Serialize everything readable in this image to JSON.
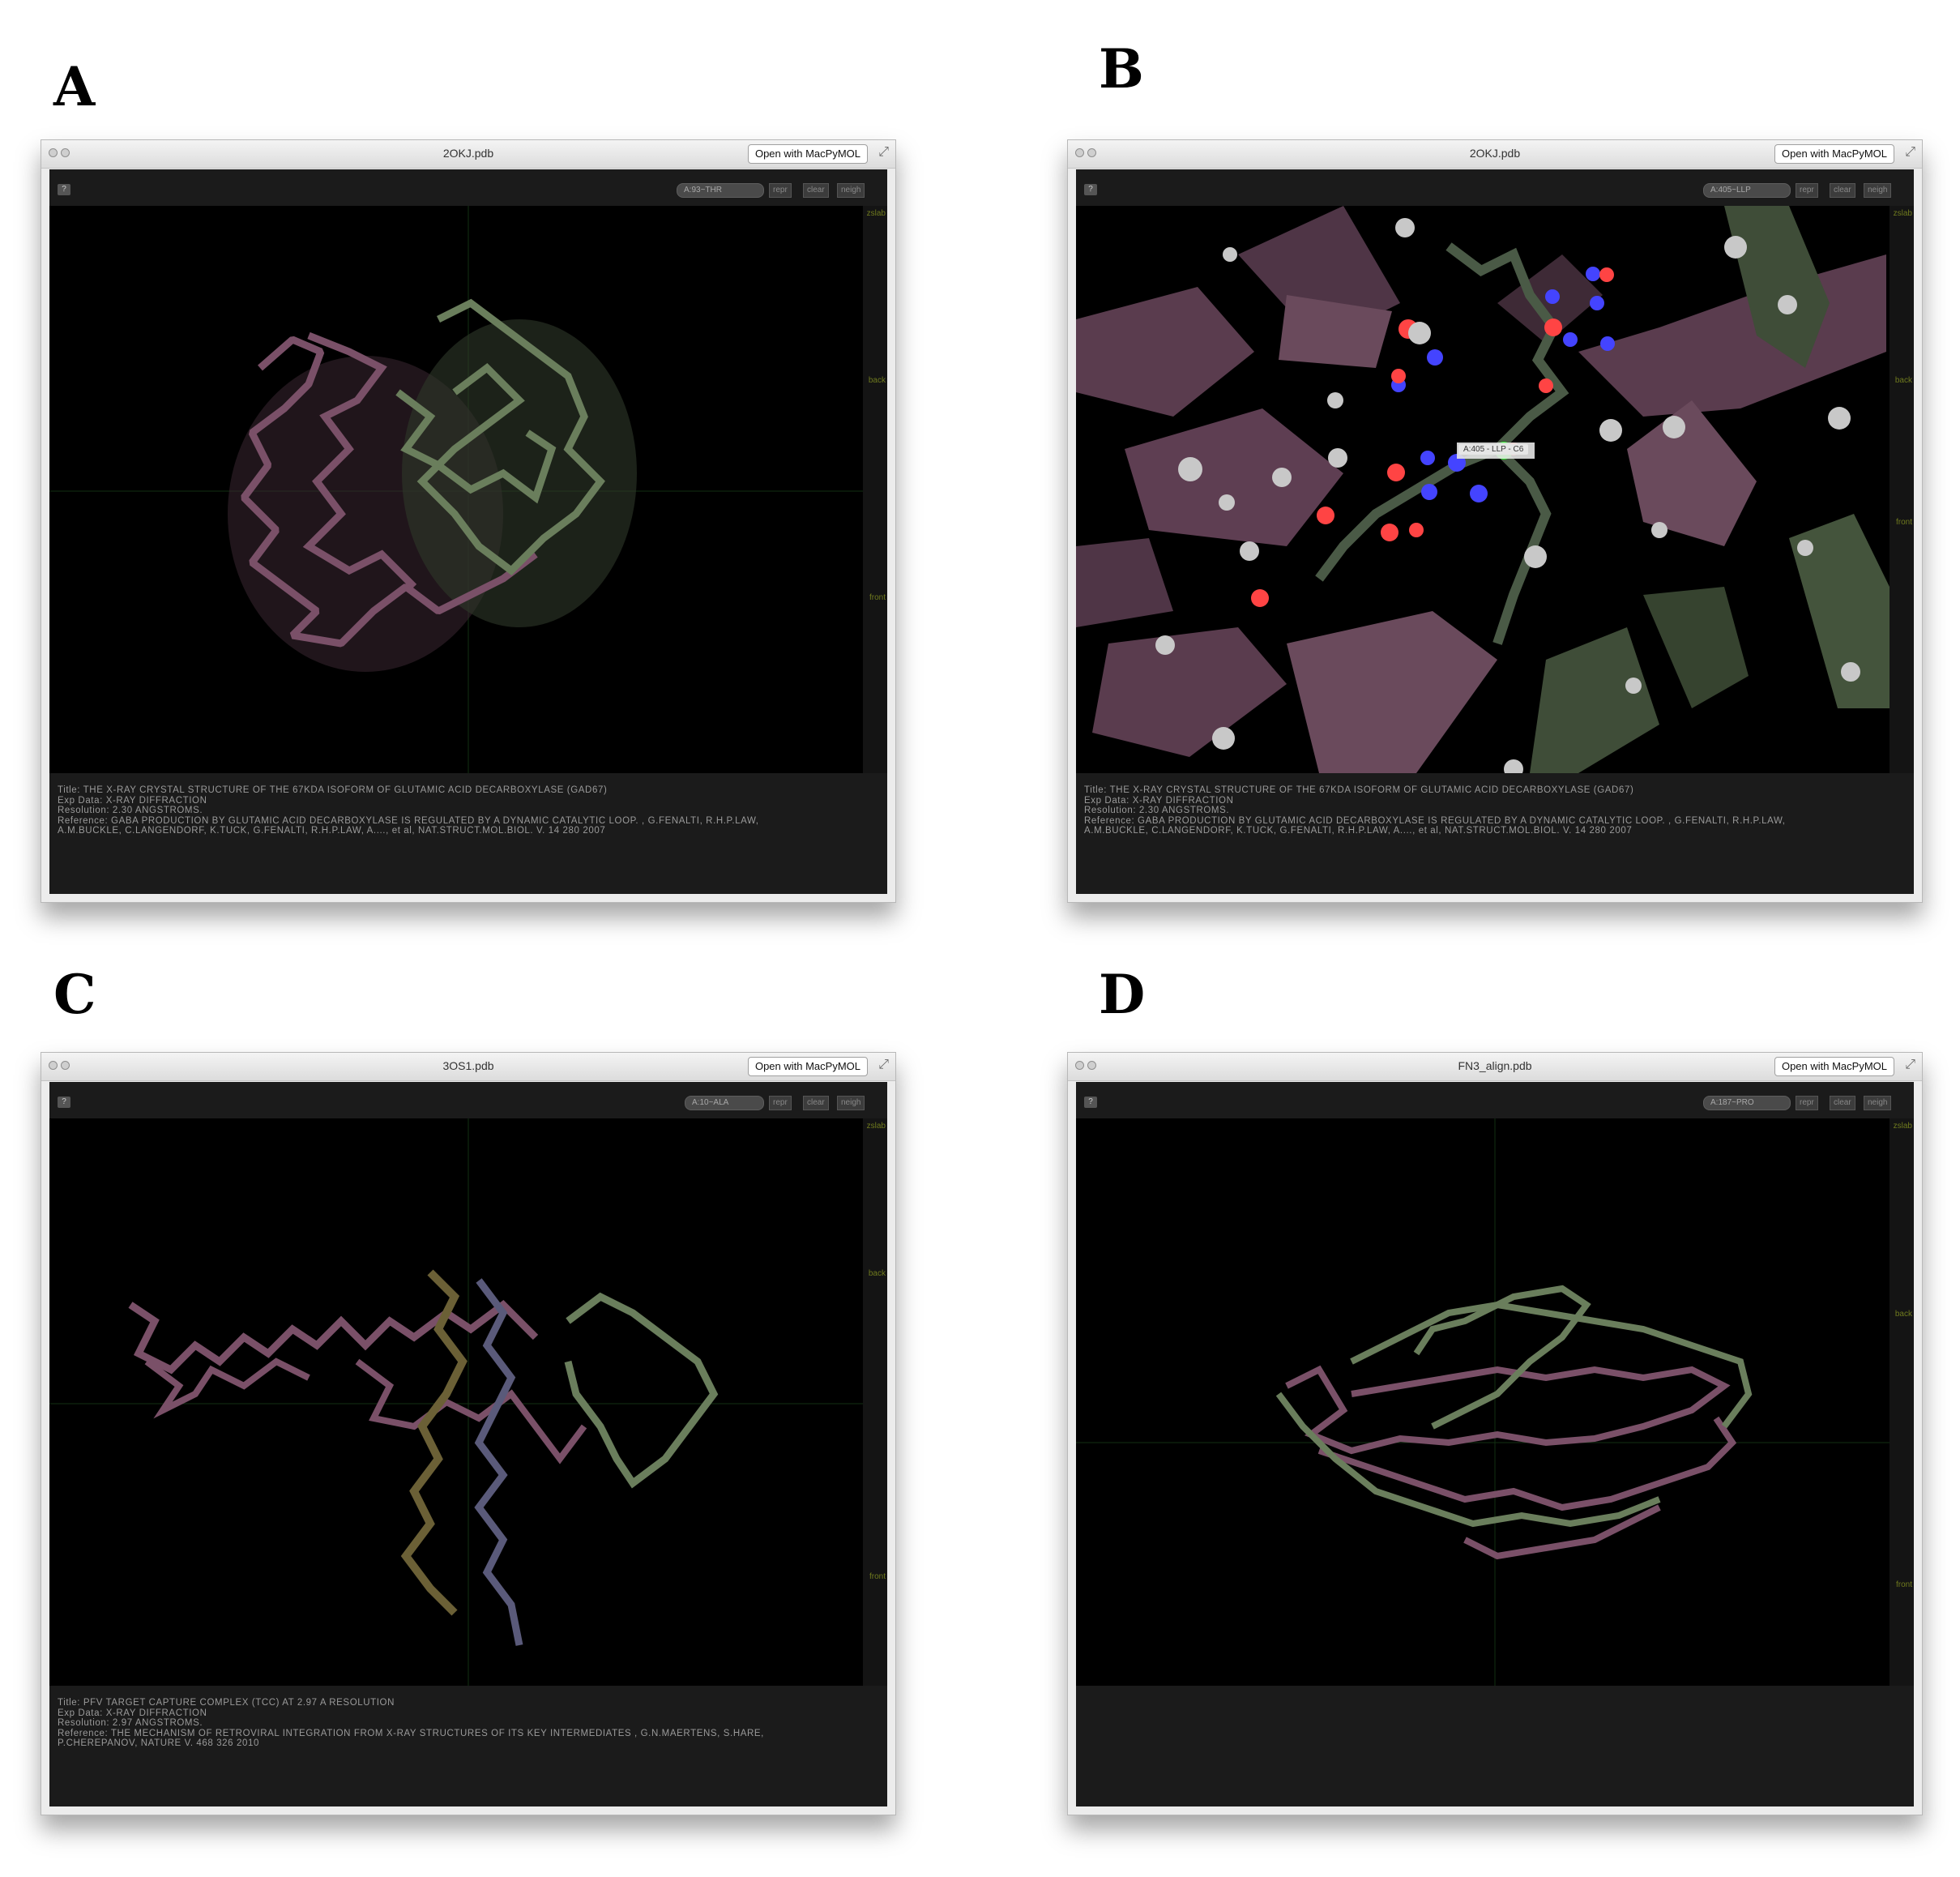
{
  "panel_labels": [
    "A",
    "B",
    "C",
    "D"
  ],
  "common": {
    "open_button": "Open with MacPyMOL",
    "help_button": "?",
    "repr_button": "repr",
    "clear_button": "clear",
    "neigh_button": "neigh",
    "slab_labels": {
      "zslab": "zslab",
      "back": "back",
      "front": "front"
    }
  },
  "windows": [
    {
      "title": "2OKJ.pdb",
      "residue_selector": "A:93~THR",
      "info": {
        "title": "Title: THE X-RAY CRYSTAL STRUCTURE OF THE 67KDA ISOFORM OF GLUTAMIC ACID DECARBOXYLASE (GAD67)",
        "exp": "Exp Data: X-RAY DIFFRACTION",
        "resolution": "Resolution: 2.30 ANGSTROMS.",
        "reference1": "Reference: GABA PRODUCTION BY GLUTAMIC ACID DECARBOXYLASE IS REGULATED BY A DYNAMIC CATALYTIC LOOP. , G.FENALTI, R.H.P.LAW,",
        "reference2": "A.M.BUCKLE, C.LANGENDORF, K.TUCK, G.FENALTI, R.H.P.LAW, A...., et al, NAT.STRUCT.MOL.BIOL. V. 14 280 2007"
      }
    },
    {
      "title": "2OKJ.pdb",
      "residue_selector": "A:405~LLP",
      "tooltip": "A:405 - LLP - C6",
      "info": {
        "title": "Title: THE X-RAY CRYSTAL STRUCTURE OF THE 67KDA ISOFORM OF GLUTAMIC ACID DECARBOXYLASE (GAD67)",
        "exp": "Exp Data: X-RAY DIFFRACTION",
        "resolution": "Resolution: 2.30 ANGSTROMS.",
        "reference1": "Reference: GABA PRODUCTION BY GLUTAMIC ACID DECARBOXYLASE IS REGULATED BY A DYNAMIC CATALYTIC LOOP. , G.FENALTI, R.H.P.LAW,",
        "reference2": "A.M.BUCKLE, C.LANGENDORF, K.TUCK, G.FENALTI, R.H.P.LAW, A...., et al, NAT.STRUCT.MOL.BIOL. V. 14 280 2007"
      }
    },
    {
      "title": "3OS1.pdb",
      "residue_selector": "A:10~ALA",
      "info": {
        "title": "Title: PFV TARGET CAPTURE COMPLEX (TCC) AT 2.97 A RESOLUTION",
        "exp": "Exp Data: X-RAY DIFFRACTION",
        "resolution": "Resolution: 2.97 ANGSTROMS.",
        "reference1": "Reference: THE MECHANISM OF RETROVIRAL INTEGRATION FROM X-RAY STRUCTURES OF ITS KEY INTERMEDIATES , G.N.MAERTENS, S.HARE,",
        "reference2": "P.CHEREPANOV, NATURE V. 468 326 2010"
      }
    },
    {
      "title": "FN3_align.pdb",
      "residue_selector": "A:187~PRO",
      "info": {
        "title": "",
        "exp": "",
        "resolution": "",
        "reference1": "",
        "reference2": ""
      }
    }
  ],
  "colors": {
    "chain_a": "#6e4a60",
    "chain_b": "#586a4e",
    "dna1": "#6b6036",
    "dna2": "#5a5a7a",
    "oxygen": "#ff4444",
    "nitrogen": "#4444ff",
    "selected": "#22ee22"
  }
}
